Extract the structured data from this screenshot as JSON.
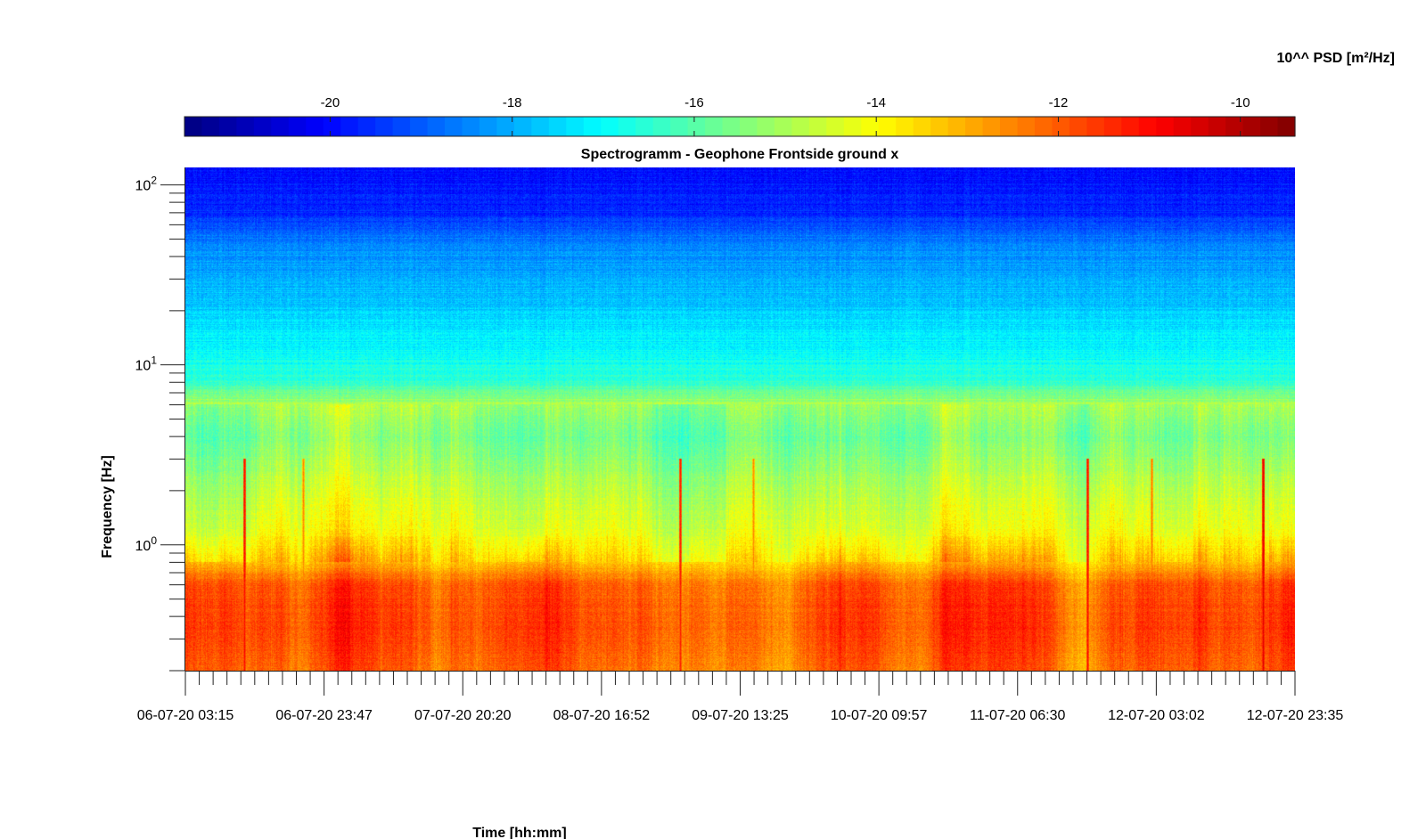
{
  "chart_data": {
    "type": "heatmap",
    "title": "Spectrogramm - Geophone Frontside ground x",
    "xlabel": "Time [hh:mm]",
    "ylabel": "Frequency [Hz]",
    "colorbar_label": "10^^ PSD [m²/Hz]",
    "colorbar_ticks": [
      -20,
      -18,
      -16,
      -14,
      -12,
      -10
    ],
    "colorbar_range": [
      -21.6,
      -9.4
    ],
    "colormap": "jet",
    "colorbar_position": "top",
    "x_tick_labels": [
      "06-07-20 03:15",
      "06-07-20 23:47",
      "07-07-20 20:20",
      "08-07-20 16:52",
      "09-07-20 13:25",
      "10-07-20 09:57",
      "11-07-20 06:30",
      "12-07-20 03:02",
      "12-07-20 23:35"
    ],
    "y_scale": "log",
    "y_range": [
      0.2,
      125
    ],
    "y_tick_labels": [
      {
        "value": 100,
        "base": "10",
        "exp": "2"
      },
      {
        "value": 10,
        "base": "10",
        "exp": "1"
      },
      {
        "value": 1,
        "base": "10",
        "exp": "0"
      }
    ],
    "psd_profile": [
      {
        "f": 0.2,
        "psd": -12.1
      },
      {
        "f": 0.35,
        "psd": -11.7
      },
      {
        "f": 0.6,
        "psd": -11.9
      },
      {
        "f": 0.8,
        "psd": -13.2
      },
      {
        "f": 1.2,
        "psd": -14.2
      },
      {
        "f": 2,
        "psd": -14.7
      },
      {
        "f": 4,
        "psd": -15.6
      },
      {
        "f": 6.1,
        "psd": -15.0
      },
      {
        "f": 8,
        "psd": -16.5
      },
      {
        "f": 20,
        "psd": -17.6
      },
      {
        "f": 45,
        "psd": -18.4
      },
      {
        "f": 70,
        "psd": -19.6
      },
      {
        "f": 125,
        "psd": -20.0
      }
    ],
    "transient_events": [
      {
        "time_fraction": 0.053,
        "psd": -11.0
      },
      {
        "time_fraction": 0.106,
        "psd": -12.5
      },
      {
        "time_fraction": 0.446,
        "psd": -11.2
      },
      {
        "time_fraction": 0.512,
        "psd": -12.5
      },
      {
        "time_fraction": 0.813,
        "psd": -11.0
      },
      {
        "time_fraction": 0.871,
        "psd": -12.3
      },
      {
        "time_fraction": 0.971,
        "psd": -10.6
      }
    ],
    "grid": false
  }
}
